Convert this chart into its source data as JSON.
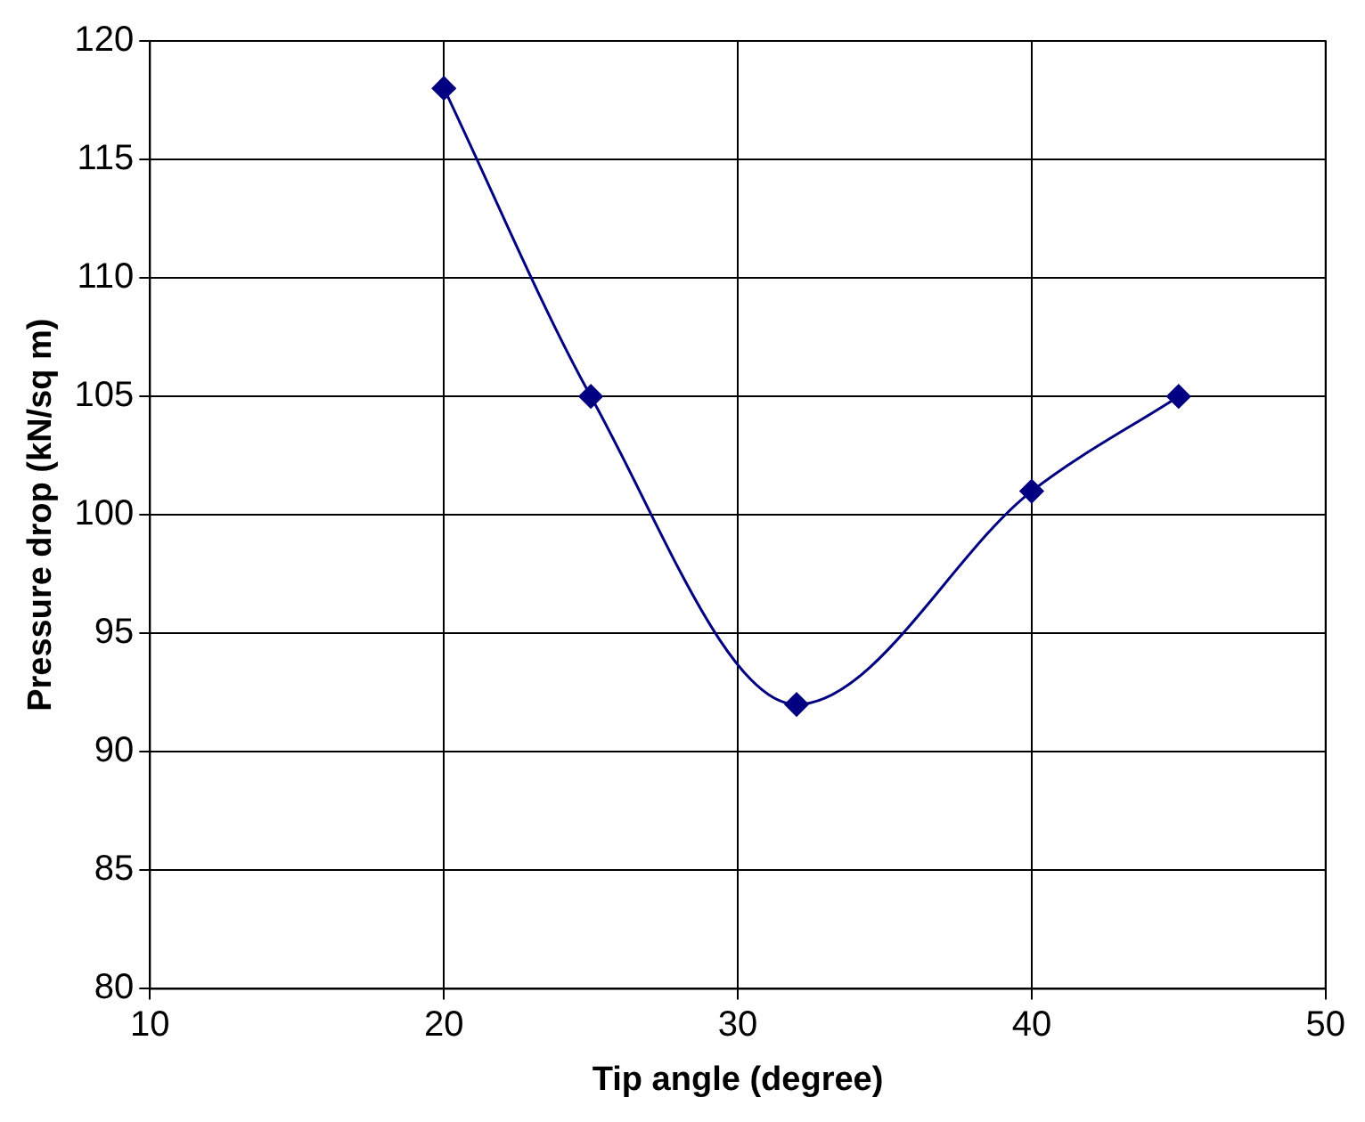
{
  "chart_data": {
    "type": "line",
    "xlabel": "Tip angle (degree)",
    "ylabel": "Pressure drop (kN/sq m)",
    "x": [
      20,
      25,
      32,
      40,
      45
    ],
    "series": [
      {
        "color": "#000080",
        "values": [
          118,
          105,
          92,
          101,
          105
        ]
      }
    ],
    "xlim": [
      10,
      50
    ],
    "xticks": [
      10,
      20,
      30,
      40,
      50
    ],
    "ylim": [
      80,
      120
    ],
    "yticks": [
      80,
      85,
      90,
      95,
      100,
      105,
      110,
      115,
      120
    ],
    "grid": true,
    "legend": false,
    "marker": "diamond",
    "line_style": "solid"
  }
}
